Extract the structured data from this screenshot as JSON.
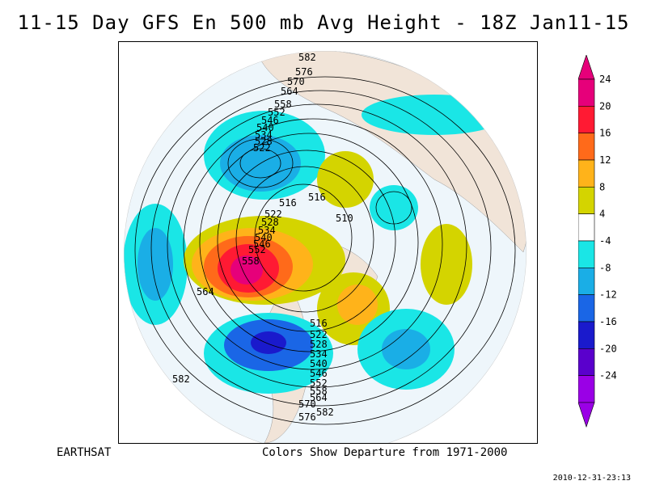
{
  "title": "11-15 Day GFS En 500 mb Avg Height - 18Z Jan11-15",
  "credit": "EARTHSAT",
  "caption": "Colors Show Departure from 1971-2000",
  "timestamp": "2010-12-31-23:13",
  "colorbar": {
    "labels": [
      "24",
      "20",
      "16",
      "12",
      "8",
      "4",
      "-4",
      "-8",
      "-12",
      "-16",
      "-20",
      "-24"
    ],
    "colors": [
      "#e6007a",
      "#ff1a33",
      "#ff6a1a",
      "#ffb31a",
      "#d4d400",
      "#ffffff",
      "#1ae6e6",
      "#1aaee6",
      "#1a66e6",
      "#1a1acc",
      "#5a00cc",
      "#9a00e6"
    ]
  },
  "contour_labels": [
    "582",
    "576",
    "570",
    "564",
    "558",
    "552",
    "546",
    "540",
    "534",
    "528",
    "522",
    "516",
    "510",
    "516",
    "522",
    "528",
    "534",
    "540",
    "546",
    "552",
    "558",
    "564",
    "570",
    "576",
    "582",
    "516",
    "522",
    "528",
    "534",
    "540",
    "546",
    "552",
    "558",
    "564",
    "582"
  ]
}
